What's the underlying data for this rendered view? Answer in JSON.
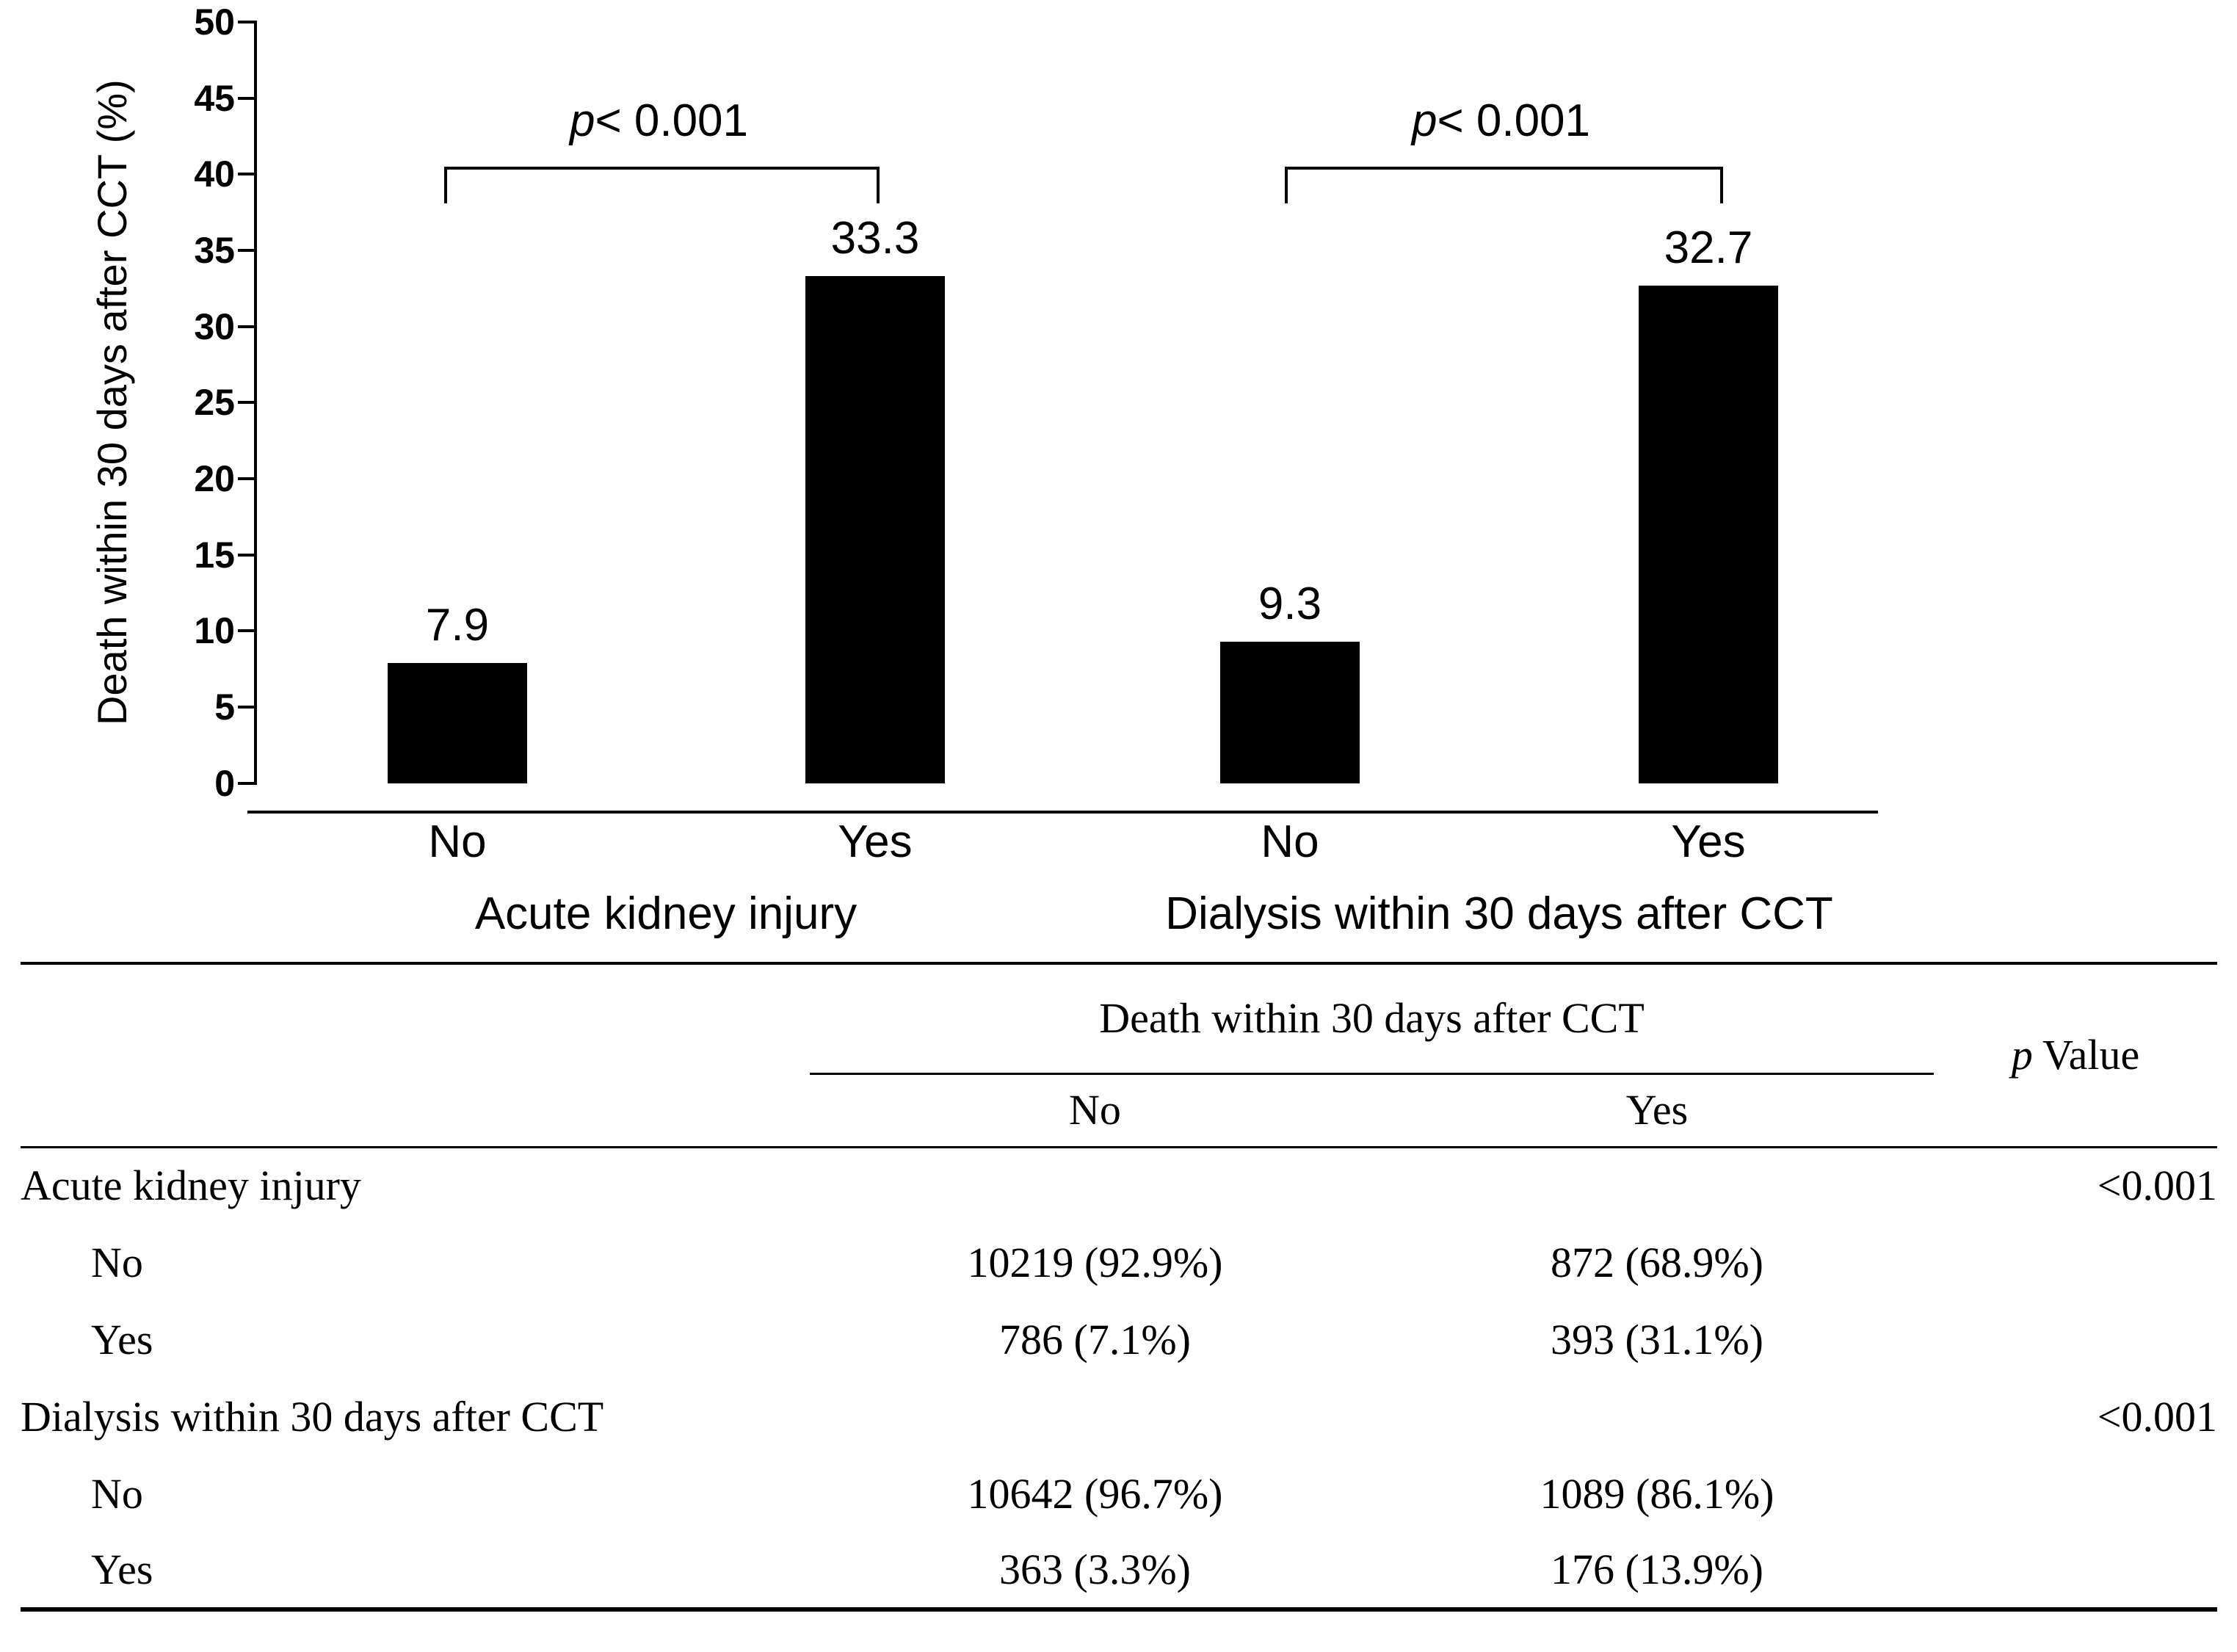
{
  "chart_data": {
    "type": "bar",
    "title": "",
    "ylabel": "Death within 30 days after CCT (%)",
    "xlabel": "",
    "ylim": [
      0,
      50
    ],
    "ytick_step": 5,
    "yticks": [
      50,
      45,
      40,
      35,
      30,
      25,
      20,
      15,
      10,
      5,
      0
    ],
    "grid": "off",
    "legend": "none",
    "bar_color": "#000000",
    "categories": [
      "No",
      "Yes",
      "No",
      "Yes"
    ],
    "values": [
      7.9,
      33.3,
      9.3,
      32.7
    ],
    "group_labels": [
      "Acute kidney injury",
      "Dialysis within 30 days after CCT"
    ],
    "p_annotations": [
      {
        "p": "p",
        "rest": "< 0.001"
      },
      {
        "p": "p",
        "rest": "< 0.001"
      }
    ]
  },
  "table": {
    "span_header": "Death within 30 days after CCT",
    "sub_no": "No",
    "sub_yes": "Yes",
    "p_header_italic": "p",
    "p_header_rest": " Value",
    "rows": [
      {
        "label": "Acute kidney injury",
        "no": "",
        "yes": "",
        "p": "<0.001"
      },
      {
        "label": "No",
        "no": "10219 (92.9%)",
        "yes": "872 (68.9%)",
        "p": ""
      },
      {
        "label": "Yes",
        "no": "786 (7.1%)",
        "yes": "393 (31.1%)",
        "p": ""
      },
      {
        "label": "Dialysis within 30 days after CCT",
        "no": "",
        "yes": "",
        "p": "<0.001"
      },
      {
        "label": "No",
        "no": "10642 (96.7%)",
        "yes": "1089 (86.1%)",
        "p": ""
      },
      {
        "label": "Yes",
        "no": "363 (3.3%)",
        "yes": "176 (13.9%)",
        "p": ""
      }
    ]
  }
}
